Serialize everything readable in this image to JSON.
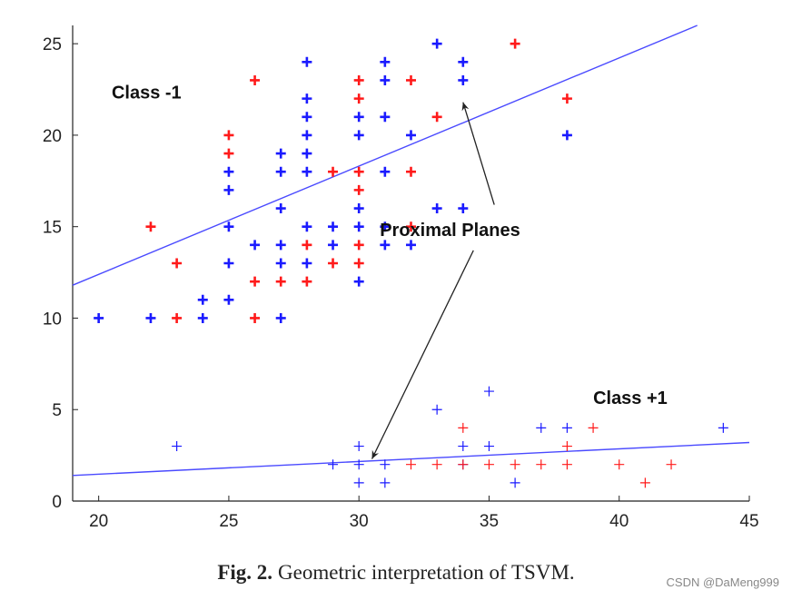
{
  "chart_data": {
    "type": "scatter",
    "xlim": [
      19,
      45
    ],
    "ylim": [
      0,
      26
    ],
    "xticks": [
      "20",
      "25",
      "30",
      "35",
      "40",
      "45"
    ],
    "yticks": [
      "0",
      "5",
      "10",
      "15",
      "20",
      "25"
    ],
    "x_tick_values": [
      20,
      25,
      30,
      35,
      40,
      45
    ],
    "y_tick_values": [
      0,
      5,
      10,
      15,
      20,
      25
    ],
    "grid": false,
    "series": [
      {
        "name": "Class -1 (blue)",
        "color": "#1a1aff",
        "marker": "plus-bold",
        "points": [
          [
            20,
            10
          ],
          [
            22,
            10
          ],
          [
            24,
            11
          ],
          [
            24,
            10
          ],
          [
            25,
            18
          ],
          [
            25,
            17
          ],
          [
            25,
            15
          ],
          [
            25,
            13
          ],
          [
            25,
            11
          ],
          [
            26,
            14
          ],
          [
            27,
            19
          ],
          [
            27,
            18
          ],
          [
            27,
            16
          ],
          [
            27,
            14
          ],
          [
            27,
            13
          ],
          [
            27,
            10
          ],
          [
            28,
            24
          ],
          [
            28,
            22
          ],
          [
            28,
            21
          ],
          [
            28,
            20
          ],
          [
            28,
            19
          ],
          [
            28,
            18
          ],
          [
            28,
            15
          ],
          [
            28,
            13
          ],
          [
            29,
            15
          ],
          [
            29,
            14
          ],
          [
            30,
            21
          ],
          [
            30,
            20
          ],
          [
            30,
            16
          ],
          [
            30,
            15
          ],
          [
            30,
            12
          ],
          [
            31,
            24
          ],
          [
            31,
            23
          ],
          [
            31,
            21
          ],
          [
            31,
            18
          ],
          [
            31,
            15
          ],
          [
            31,
            14
          ],
          [
            32,
            20
          ],
          [
            32,
            14
          ],
          [
            33,
            25
          ],
          [
            33,
            16
          ],
          [
            34,
            24
          ],
          [
            34,
            23
          ],
          [
            34,
            16
          ],
          [
            38,
            20
          ]
        ]
      },
      {
        "name": "Class -1 (red)",
        "color": "#ff1a1a",
        "marker": "plus-bold",
        "points": [
          [
            22,
            15
          ],
          [
            23,
            13
          ],
          [
            23,
            10
          ],
          [
            25,
            20
          ],
          [
            25,
            19
          ],
          [
            26,
            23
          ],
          [
            26,
            12
          ],
          [
            26,
            10
          ],
          [
            27,
            12
          ],
          [
            28,
            14
          ],
          [
            28,
            12
          ],
          [
            29,
            18
          ],
          [
            29,
            13
          ],
          [
            30,
            23
          ],
          [
            30,
            22
          ],
          [
            30,
            18
          ],
          [
            30,
            17
          ],
          [
            30,
            14
          ],
          [
            30,
            13
          ],
          [
            32,
            23
          ],
          [
            32,
            18
          ],
          [
            32,
            15
          ],
          [
            33,
            21
          ],
          [
            36,
            25
          ],
          [
            38,
            22
          ]
        ]
      },
      {
        "name": "Class +1 (blue)",
        "color": "#1a1aff",
        "marker": "plus",
        "points": [
          [
            23,
            3
          ],
          [
            29,
            2
          ],
          [
            30,
            3
          ],
          [
            30,
            2
          ],
          [
            30,
            1
          ],
          [
            31,
            2
          ],
          [
            31,
            1
          ],
          [
            33,
            5
          ],
          [
            34,
            3
          ],
          [
            34,
            2
          ],
          [
            35,
            6
          ],
          [
            35,
            3
          ],
          [
            36,
            1
          ],
          [
            37,
            4
          ],
          [
            38,
            4
          ],
          [
            44,
            4
          ]
        ]
      },
      {
        "name": "Class +1 (red)",
        "color": "#ff1a1a",
        "marker": "plus",
        "points": [
          [
            32,
            2
          ],
          [
            33,
            2
          ],
          [
            34,
            4
          ],
          [
            34,
            2
          ],
          [
            35,
            2
          ],
          [
            36,
            2
          ],
          [
            37,
            2
          ],
          [
            38,
            3
          ],
          [
            38,
            2
          ],
          [
            39,
            4
          ],
          [
            40,
            2
          ],
          [
            41,
            1
          ],
          [
            42,
            2
          ]
        ]
      }
    ],
    "lines": [
      {
        "name": "Proximal plane Class -1",
        "color": "#4a4aff",
        "from": [
          19,
          11.8
        ],
        "to": [
          43,
          26
        ]
      },
      {
        "name": "Proximal plane Class +1",
        "color": "#4a4aff",
        "from": [
          19,
          1.4
        ],
        "to": [
          45,
          3.2
        ]
      }
    ],
    "labels": {
      "class_neg": "Class -1",
      "class_pos": "Class +1",
      "annotation": "Proximal Planes"
    },
    "label_anchors": {
      "class_neg": [
        20.5,
        22
      ],
      "class_pos": [
        39,
        5.3
      ],
      "annotation": [
        33.5,
        14.5
      ]
    },
    "arrows": [
      {
        "from": [
          35.2,
          16.2
        ],
        "to": [
          34.0,
          21.8
        ]
      },
      {
        "from": [
          34.4,
          13.7
        ],
        "to": [
          30.5,
          2.3
        ]
      }
    ]
  },
  "caption": {
    "fig_number": "Fig. 2.",
    "text": "Geometric interpretation of TSVM."
  },
  "watermark": "CSDN @DaMeng999"
}
